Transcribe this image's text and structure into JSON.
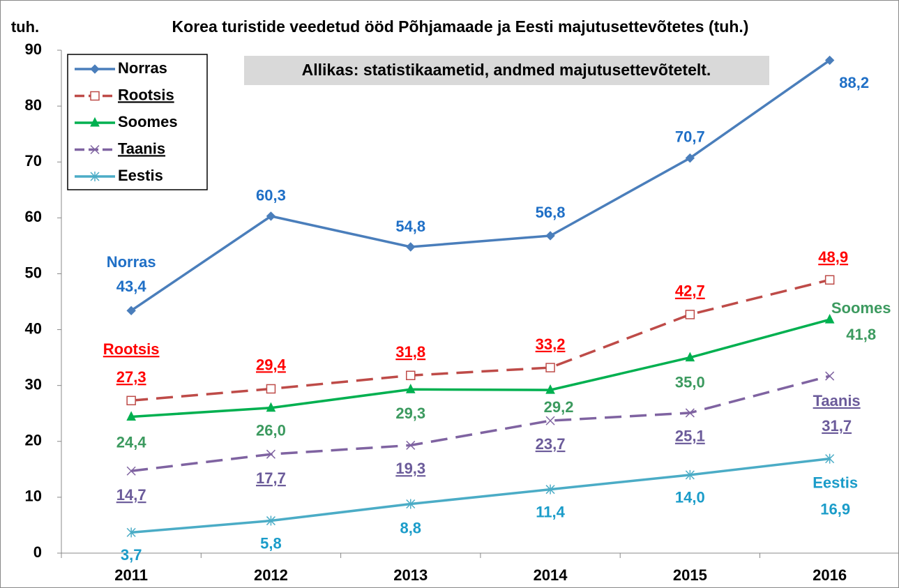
{
  "chart_data": {
    "type": "line",
    "title": "Korea turistide veedetud ööd Põhjamaade ja Eesti majutusettevõtetes (tuh.)",
    "y_label": "tuh.",
    "annotation": "Allikas: statistikaametid, andmed majutusettevõtetelt.",
    "categories": [
      "2011",
      "2012",
      "2013",
      "2014",
      "2015",
      "2016"
    ],
    "ylim": [
      0,
      90
    ],
    "yticks": [
      0,
      10,
      20,
      30,
      40,
      50,
      60,
      70,
      80,
      90
    ],
    "legend": "upper left",
    "series": [
      {
        "name": "Norras",
        "color": "#4a7ebb",
        "label_color": "#1f6fc6",
        "marker": "diamond",
        "dashed": false,
        "underline": false,
        "values": [
          43.4,
          60.3,
          54.8,
          56.8,
          70.7,
          88.2
        ],
        "value_labels": [
          "43,4",
          "60,3",
          "54,8",
          "56,8",
          "70,7",
          "88,2"
        ]
      },
      {
        "name": "Rootsis",
        "color": "#be4b48",
        "label_color": "#ff0000",
        "marker": "square",
        "dashed": true,
        "underline": true,
        "values": [
          27.3,
          29.4,
          31.8,
          33.2,
          42.7,
          48.9
        ],
        "value_labels": [
          "27,3",
          "29,4",
          "31,8",
          "33,2",
          "42,7",
          "48,9"
        ]
      },
      {
        "name": "Soomes",
        "color": "#00b050",
        "label_color": "#3c9a5f",
        "marker": "triangle",
        "dashed": false,
        "underline": false,
        "values": [
          24.4,
          26.0,
          29.3,
          29.2,
          35.0,
          41.8
        ],
        "value_labels": [
          "24,4",
          "26,0",
          "29,3",
          "29,2",
          "35,0",
          "41,8"
        ]
      },
      {
        "name": "Taanis",
        "color": "#7f63a1",
        "label_color": "#6b5b9a",
        "marker": "x",
        "dashed": true,
        "underline": true,
        "values": [
          14.7,
          17.7,
          19.3,
          23.7,
          25.1,
          31.7
        ],
        "value_labels": [
          "14,7",
          "17,7",
          "19,3",
          "23,7",
          "25,1",
          "31,7"
        ]
      },
      {
        "name": "Eestis",
        "color": "#4bacc6",
        "label_color": "#1b9cc9",
        "marker": "star",
        "dashed": false,
        "underline": false,
        "values": [
          3.7,
          5.8,
          8.8,
          11.4,
          14.0,
          16.9
        ],
        "value_labels": [
          "3,7",
          "5,8",
          "8,8",
          "11,4",
          "14,0",
          "16,9"
        ]
      }
    ]
  }
}
